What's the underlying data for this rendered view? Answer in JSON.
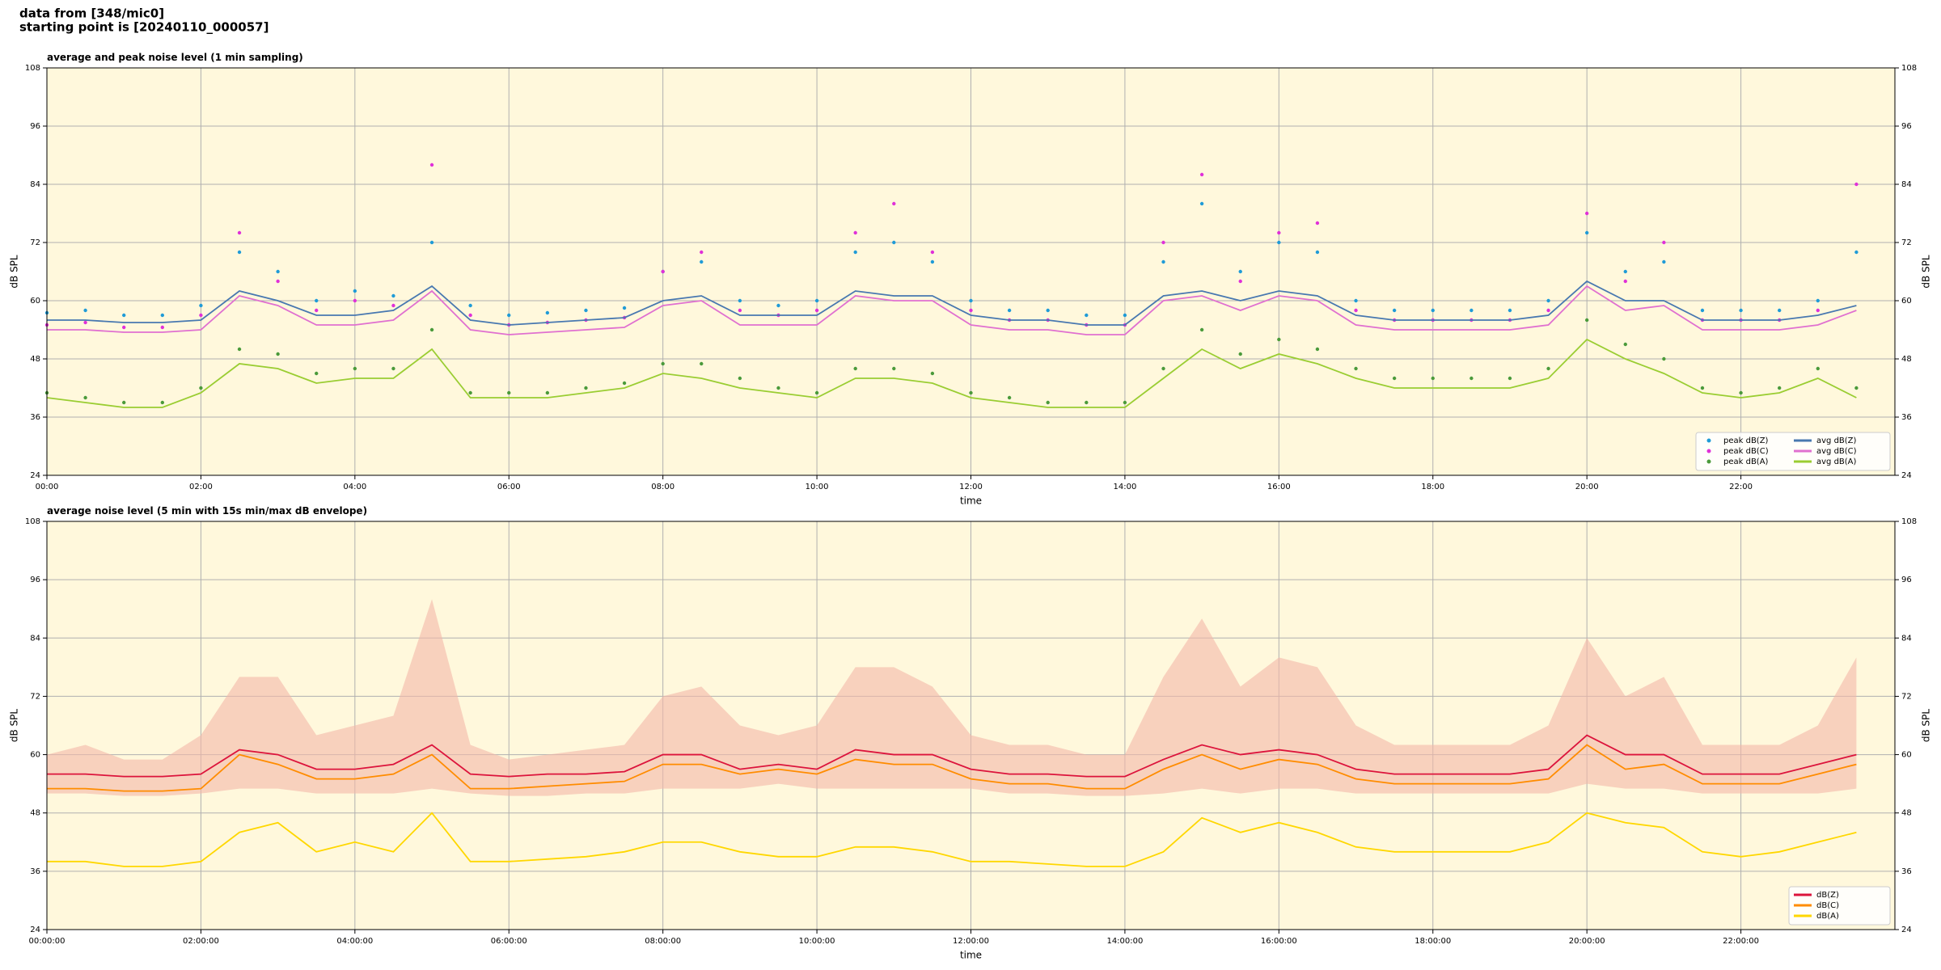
{
  "header": {
    "source": "data from [348/mic0]",
    "start": "starting point is [20240110_000057]"
  },
  "chart_data": [
    {
      "type": "line",
      "title": "average and peak noise level (1 min sampling)",
      "x_label": "time",
      "y_label": "dB SPL",
      "xlim": [
        0,
        24
      ],
      "ylim": [
        24,
        108
      ],
      "yticks": [
        24,
        36,
        48,
        60,
        72,
        84,
        96,
        108
      ],
      "grid": true,
      "legend": "lower right",
      "xticks": [
        {
          "value": 0,
          "label": "00:00"
        },
        {
          "value": 2,
          "label": "02:00"
        },
        {
          "value": 4,
          "label": "04:00"
        },
        {
          "value": 6,
          "label": "06:00"
        },
        {
          "value": 8,
          "label": "08:00"
        },
        {
          "value": 10,
          "label": "10:00"
        },
        {
          "value": 12,
          "label": "12:00"
        },
        {
          "value": 14,
          "label": "14:00"
        },
        {
          "value": 16,
          "label": "16:00"
        },
        {
          "value": 18,
          "label": "18:00"
        },
        {
          "value": 20,
          "label": "20:00"
        },
        {
          "value": 22,
          "label": "22:00"
        }
      ],
      "x": [
        0,
        0.5,
        1,
        1.5,
        2,
        2.5,
        3,
        3.5,
        4,
        4.5,
        5,
        5.5,
        6,
        6.5,
        7,
        7.5,
        8,
        8.5,
        9,
        9.5,
        10,
        10.5,
        11,
        11.5,
        12,
        12.5,
        13,
        13.5,
        14,
        14.5,
        15,
        15.5,
        16,
        16.5,
        17,
        17.5,
        18,
        18.5,
        19,
        19.5,
        20,
        20.5,
        21,
        21.5,
        22,
        22.5,
        23,
        23.5
      ],
      "series": [
        {
          "name": "peak dB(Z)",
          "style": "points",
          "color": "#1f9bd7",
          "values": [
            57.5,
            58,
            57,
            57,
            59,
            70,
            66,
            60,
            62,
            61,
            72,
            59,
            57,
            57.5,
            58,
            58.5,
            66,
            68,
            60,
            59,
            60,
            70,
            72,
            68,
            60,
            58,
            58,
            57,
            57,
            68,
            80,
            66,
            72,
            70,
            60,
            58,
            58,
            58,
            58,
            60,
            74,
            66,
            68,
            58,
            58,
            58,
            60,
            70
          ]
        },
        {
          "name": "peak dB(C)",
          "style": "points",
          "color": "#e030d8",
          "values": [
            55,
            55.5,
            54.5,
            54.5,
            57,
            74,
            64,
            58,
            60,
            59,
            88,
            57,
            55,
            55.5,
            56,
            56.5,
            66,
            70,
            58,
            57,
            58,
            74,
            80,
            70,
            58,
            56,
            56,
            55,
            55,
            72,
            86,
            64,
            74,
            76,
            58,
            56,
            56,
            56,
            56,
            58,
            78,
            64,
            72,
            56,
            56,
            56,
            58,
            84
          ]
        },
        {
          "name": "peak dB(A)",
          "style": "points",
          "color": "#4a9a3a",
          "values": [
            41,
            40,
            39,
            39,
            42,
            50,
            49,
            45,
            46,
            46,
            54,
            41,
            41,
            41,
            42,
            43,
            47,
            47,
            44,
            42,
            41,
            46,
            46,
            45,
            41,
            40,
            39,
            39,
            39,
            46,
            54,
            49,
            52,
            50,
            46,
            44,
            44,
            44,
            44,
            46,
            56,
            51,
            48,
            42,
            41,
            42,
            46,
            42
          ]
        },
        {
          "name": "avg dB(Z)",
          "style": "line",
          "color": "#4878b0",
          "values": [
            56,
            56,
            55.5,
            55.5,
            56,
            62,
            60,
            57,
            57,
            58,
            63,
            56,
            55,
            55.5,
            56,
            56.5,
            60,
            61,
            57,
            57,
            57,
            62,
            61,
            61,
            57,
            56,
            56,
            55,
            55,
            61,
            62,
            60,
            62,
            61,
            57,
            56,
            56,
            56,
            56,
            57,
            64,
            60,
            60,
            56,
            56,
            56,
            57,
            59
          ]
        },
        {
          "name": "avg dB(C)",
          "style": "line",
          "color": "#e070d0",
          "values": [
            54,
            54,
            53.5,
            53.5,
            54,
            61,
            59,
            55,
            55,
            56,
            62,
            54,
            53,
            53.5,
            54,
            54.5,
            59,
            60,
            55,
            55,
            55,
            61,
            60,
            60,
            55,
            54,
            54,
            53,
            53,
            60,
            61,
            58,
            61,
            60,
            55,
            54,
            54,
            54,
            54,
            55,
            63,
            58,
            59,
            54,
            54,
            54,
            55,
            58
          ]
        },
        {
          "name": "avg dB(A)",
          "style": "line",
          "color": "#9acd32",
          "values": [
            40,
            39,
            38,
            38,
            41,
            47,
            46,
            43,
            44,
            44,
            50,
            40,
            40,
            40,
            41,
            42,
            45,
            44,
            42,
            41,
            40,
            44,
            44,
            43,
            40,
            39,
            38,
            38,
            38,
            44,
            50,
            46,
            49,
            47,
            44,
            42,
            42,
            42,
            42,
            44,
            52,
            48,
            45,
            41,
            40,
            41,
            44,
            40
          ]
        }
      ]
    },
    {
      "type": "line",
      "title": "average noise level (5 min with 15s min/max dB envelope)",
      "x_label": "time",
      "y_label": "dB SPL",
      "xlim": [
        0,
        24
      ],
      "ylim": [
        24,
        108
      ],
      "yticks": [
        24,
        36,
        48,
        60,
        72,
        84,
        96,
        108
      ],
      "grid": true,
      "legend": "lower right",
      "xticks": [
        {
          "value": 0,
          "label": "00:00:00"
        },
        {
          "value": 2,
          "label": "02:00:00"
        },
        {
          "value": 4,
          "label": "04:00:00"
        },
        {
          "value": 6,
          "label": "06:00:00"
        },
        {
          "value": 8,
          "label": "08:00:00"
        },
        {
          "value": 10,
          "label": "10:00:00"
        },
        {
          "value": 12,
          "label": "12:00:00"
        },
        {
          "value": 14,
          "label": "14:00:00"
        },
        {
          "value": 16,
          "label": "16:00:00"
        },
        {
          "value": 18,
          "label": "18:00:00"
        },
        {
          "value": 20,
          "label": "20:00:00"
        },
        {
          "value": 22,
          "label": "22:00:00"
        }
      ],
      "x": [
        0,
        0.5,
        1,
        1.5,
        2,
        2.5,
        3,
        3.5,
        4,
        4.5,
        5,
        5.5,
        6,
        6.5,
        7,
        7.5,
        8,
        8.5,
        9,
        9.5,
        10,
        10.5,
        11,
        11.5,
        12,
        12.5,
        13,
        13.5,
        14,
        14.5,
        15,
        15.5,
        16,
        16.5,
        17,
        17.5,
        18,
        18.5,
        19,
        19.5,
        20,
        20.5,
        21,
        21.5,
        22,
        22.5,
        23,
        23.5
      ],
      "envelope": {
        "color": "#f4b8a8",
        "lower": [
          52,
          52,
          51.5,
          51.5,
          52,
          53,
          53,
          52,
          52,
          52,
          53,
          52,
          51.5,
          51.5,
          52,
          52,
          53,
          53,
          53,
          54,
          53,
          53,
          53,
          53,
          53,
          52,
          52,
          51.5,
          51.5,
          52,
          53,
          52,
          53,
          53,
          52,
          52,
          52,
          52,
          52,
          52,
          54,
          53,
          53,
          52,
          52,
          52,
          52,
          53
        ],
        "upper": [
          60,
          62,
          59,
          59,
          64,
          76,
          76,
          64,
          66,
          68,
          92,
          62,
          59,
          60,
          61,
          62,
          72,
          74,
          66,
          64,
          66,
          78,
          78,
          74,
          64,
          62,
          62,
          60,
          60,
          76,
          88,
          74,
          80,
          78,
          66,
          62,
          62,
          62,
          62,
          66,
          84,
          72,
          76,
          62,
          62,
          62,
          66,
          80
        ]
      },
      "series": [
        {
          "name": "dB(Z)",
          "style": "line",
          "color": "#dc143c",
          "values": [
            56,
            56,
            55.5,
            55.5,
            56,
            61,
            60,
            57,
            57,
            58,
            62,
            56,
            55.5,
            56,
            56,
            56.5,
            60,
            60,
            57,
            58,
            57,
            61,
            60,
            60,
            57,
            56,
            56,
            55.5,
            55.5,
            59,
            62,
            60,
            61,
            60,
            57,
            56,
            56,
            56,
            56,
            57,
            64,
            60,
            60,
            56,
            56,
            56,
            58,
            60
          ]
        },
        {
          "name": "dB(C)",
          "style": "line",
          "color": "#ff8c00",
          "values": [
            53,
            53,
            52.5,
            52.5,
            53,
            60,
            58,
            55,
            55,
            56,
            60,
            53,
            53,
            53.5,
            54,
            54.5,
            58,
            58,
            56,
            57,
            56,
            59,
            58,
            58,
            55,
            54,
            54,
            53,
            53,
            57,
            60,
            57,
            59,
            58,
            55,
            54,
            54,
            54,
            54,
            55,
            62,
            57,
            58,
            54,
            54,
            54,
            56,
            58
          ]
        },
        {
          "name": "dB(A)",
          "style": "line",
          "color": "#ffd700",
          "values": [
            38,
            38,
            37,
            37,
            38,
            44,
            46,
            40,
            42,
            40,
            48,
            38,
            38,
            38.5,
            39,
            40,
            42,
            42,
            40,
            39,
            39,
            41,
            41,
            40,
            38,
            38,
            37.5,
            37,
            37,
            40,
            47,
            44,
            46,
            44,
            41,
            40,
            40,
            40,
            40,
            42,
            48,
            46,
            45,
            40,
            39,
            40,
            42,
            44
          ]
        }
      ]
    }
  ]
}
